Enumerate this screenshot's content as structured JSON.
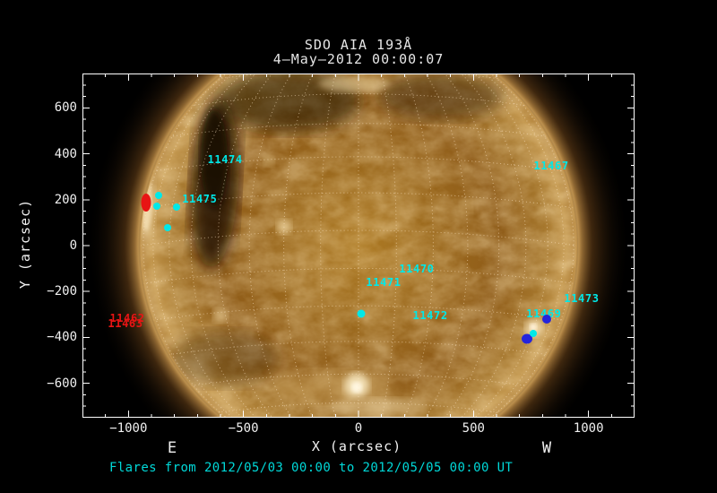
{
  "header": {
    "title": "SDO AIA 193Å",
    "subtitle": "4–May–2012 00:00:07"
  },
  "chart_data": {
    "type": "scatter",
    "description": "SDO AIA 193 angstrom full-disk solar image with heliographic grid, NOAA active region numbers and flare site markers",
    "title": "SDO AIA 193Å",
    "subtitle": "4–May–2012 00:00:07",
    "xlabel": "X (arcsec)",
    "ylabel": "Y (arcsec)",
    "east_label": "E",
    "west_label": "W",
    "caption": "Flares from 2012/05/03 00:00 to 2012/05/05 00:00 UT",
    "xlim": [
      -1200,
      1200
    ],
    "ylim": [
      -750,
      750
    ],
    "x_major_ticks": [
      -1000,
      -500,
      0,
      500,
      1000
    ],
    "x_minor_step": 100,
    "y_major_ticks": [
      -600,
      -400,
      -200,
      0,
      200,
      400,
      600
    ],
    "y_minor_step": 50,
    "grid_spacing_deg": 10,
    "solar_radius_arcsec": 950,
    "colors": {
      "cyan": "#00e8e8",
      "red": "#e81414",
      "blue": "#2424dc",
      "axis_text": "#f0f0f0",
      "title_text": "#e6e6e6",
      "caption": "#00d8d8",
      "grid_line": "#ffe8c8"
    },
    "active_regions": [
      {
        "id": "11474",
        "x": -580,
        "y": 375,
        "color": "cyan"
      },
      {
        "id": "11475",
        "x": -690,
        "y": 203,
        "color": "cyan"
      },
      {
        "id": "11467",
        "x": 838,
        "y": 348,
        "color": "cyan"
      },
      {
        "id": "11470",
        "x": 253,
        "y": -102,
        "color": "cyan"
      },
      {
        "id": "11471",
        "x": 109,
        "y": -160,
        "color": "cyan"
      },
      {
        "id": "11472",
        "x": 312,
        "y": -305,
        "color": "cyan"
      },
      {
        "id": "11473",
        "x": 970,
        "y": -230,
        "color": "cyan"
      },
      {
        "id": "11469",
        "x": 806,
        "y": -297,
        "color": "cyan"
      },
      {
        "id": "11462",
        "x": -1005,
        "y": -316,
        "color": "red"
      },
      {
        "id": "11463",
        "x": -1013,
        "y": -340,
        "color": "red"
      }
    ],
    "flare_markers": [
      {
        "x": -923,
        "y": 188,
        "color": "red",
        "w": 11,
        "h": 20
      },
      {
        "x": -869,
        "y": 219,
        "color": "cyan",
        "w": 8,
        "h": 8
      },
      {
        "x": -877,
        "y": 172,
        "color": "cyan",
        "w": 8,
        "h": 8
      },
      {
        "x": -791,
        "y": 168,
        "color": "cyan",
        "w": 8,
        "h": 8
      },
      {
        "x": -830,
        "y": 78,
        "color": "cyan",
        "w": 8,
        "h": 8
      },
      {
        "x": 12,
        "y": -297,
        "color": "cyan",
        "w": 9,
        "h": 9
      },
      {
        "x": 818,
        "y": -320,
        "color": "blue",
        "w": 10,
        "h": 10
      },
      {
        "x": 732,
        "y": -406,
        "color": "blue",
        "w": 12,
        "h": 11
      },
      {
        "x": 760,
        "y": -383,
        "color": "cyan",
        "w": 8,
        "h": 8
      }
    ]
  }
}
